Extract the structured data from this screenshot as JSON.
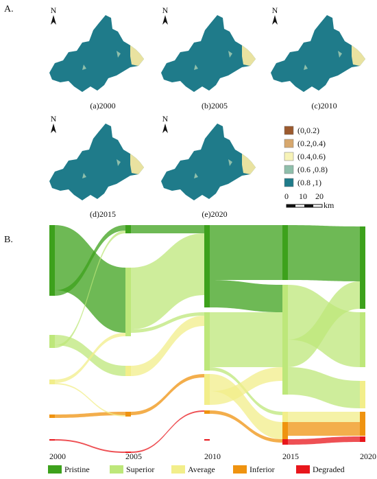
{
  "panel_a": {
    "label": "A.",
    "north": "N",
    "maps": [
      {
        "caption": "(a)2000"
      },
      {
        "caption": "(b)2005"
      },
      {
        "caption": "(c)2010"
      },
      {
        "caption": "(d)2015"
      },
      {
        "caption": "(e)2020"
      }
    ],
    "legend": [
      {
        "label": "(0,0.2)",
        "color": "#9c5a2e"
      },
      {
        "label": "(0.2,0.4)",
        "color": "#d7a86e"
      },
      {
        "label": "(0.4,0.6)",
        "color": "#f7f3b8"
      },
      {
        "label": "(0.6 ,0.8)",
        "color": "#8fbfab"
      },
      {
        "label": "(0.8 ,1)",
        "color": "#1f7b8a"
      }
    ],
    "scale_bar": {
      "ticks": [
        "0",
        "10",
        "20"
      ],
      "unit": "km"
    }
  },
  "panel_b": {
    "label": "B.",
    "years": [
      "2000",
      "2005",
      "2010",
      "2015",
      "2020"
    ],
    "legend": [
      {
        "label": "Pristine",
        "color": "#3da11c"
      },
      {
        "label": "Superior",
        "color": "#bde77a"
      },
      {
        "label": "Average",
        "color": "#f2ee8a"
      },
      {
        "label": "Inferior",
        "color": "#ef9310"
      },
      {
        "label": "Degraded",
        "color": "#e8161b"
      }
    ]
  }
}
